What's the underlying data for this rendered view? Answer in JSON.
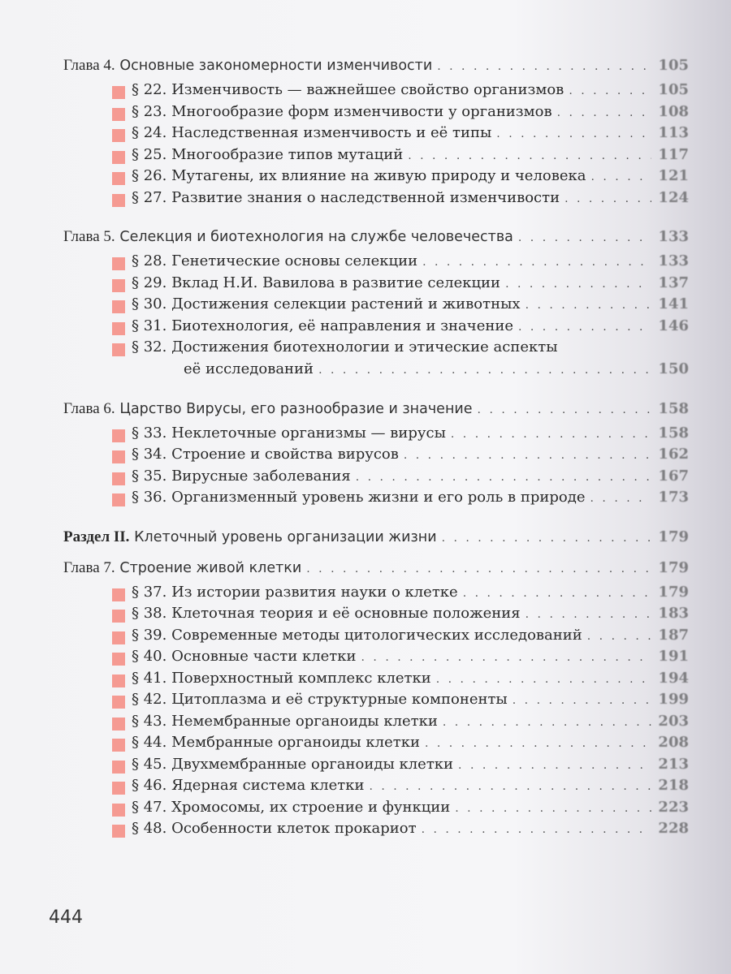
{
  "entries": [
    {
      "type": "head",
      "label": "Глава 4.",
      "title": "Основные закономерности изменчивости",
      "page": "105"
    },
    {
      "type": "item",
      "text": "§ 22. Изменчивость — важнейшее свойство организмов",
      "page": "105"
    },
    {
      "type": "item",
      "text": "§ 23. Многообразие форм изменчивости у организмов",
      "page": "108"
    },
    {
      "type": "item",
      "text": "§ 24. Наследственная изменчивость и её типы",
      "page": "113"
    },
    {
      "type": "item",
      "text": "§ 25. Многообразие типов мутаций",
      "page": "117"
    },
    {
      "type": "item",
      "text": "§ 26. Мутагены, их влияние на живую природу и человека",
      "page": "121"
    },
    {
      "type": "item",
      "text": "§ 27. Развитие знания о наследственной изменчивости",
      "page": "124"
    },
    {
      "type": "head",
      "label": "Глава 5.",
      "title": "Селекция и биотехнология на службе человечества",
      "page": "133"
    },
    {
      "type": "item",
      "text": "§ 28. Генетические основы селекции",
      "page": "133"
    },
    {
      "type": "item",
      "text": "§ 29. Вклад Н.И. Вавилова в развитие селекции",
      "page": "137"
    },
    {
      "type": "item",
      "text": "§ 30. Достижения селекции растений и животных",
      "page": "141"
    },
    {
      "type": "item",
      "text": "§ 31. Биотехнология, её направления и значение",
      "page": "146"
    },
    {
      "type": "item",
      "text": "§ 32. Достижения биотехнологии и этические аспекты",
      "page": ""
    },
    {
      "type": "cont",
      "text": "её исследований",
      "page": "150"
    },
    {
      "type": "head",
      "label": "Глава 6.",
      "title": "Царство Вирусы, его разнообразие и значение",
      "page": "158"
    },
    {
      "type": "item",
      "text": "§ 33. Неклеточные организмы — вирусы",
      "page": "158"
    },
    {
      "type": "item",
      "text": "§ 34. Строение и свойства вирусов",
      "page": "162"
    },
    {
      "type": "item",
      "text": "§ 35. Вирусные заболевания",
      "page": "167"
    },
    {
      "type": "item",
      "text": "§ 36. Организменный уровень жизни и его роль в природе",
      "page": "173"
    },
    {
      "type": "head",
      "label": "Раздел II.",
      "bold": true,
      "title": "Клеточный уровень организации жизни",
      "page": "179"
    },
    {
      "type": "head",
      "label": "Глава 7.",
      "title": "Строение живой клетки",
      "page": "179",
      "tight": true
    },
    {
      "type": "item",
      "text": "§ 37. Из истории развития науки о клетке",
      "page": "179"
    },
    {
      "type": "item",
      "text": "§ 38. Клеточная теория и её основные положения",
      "page": "183"
    },
    {
      "type": "item",
      "text": "§ 39. Современные методы цитологических исследований",
      "page": "187"
    },
    {
      "type": "item",
      "text": "§ 40. Основные части клетки",
      "page": "191"
    },
    {
      "type": "item",
      "text": "§ 41. Поверхностный комплекс клетки",
      "page": "194"
    },
    {
      "type": "item",
      "text": "§ 42. Цитоплазма и её структурные компоненты",
      "page": "199"
    },
    {
      "type": "item",
      "text": "§ 43. Немембранные органоиды клетки",
      "page": "203"
    },
    {
      "type": "item",
      "text": "§ 44. Мембранные органоиды клетки",
      "page": "208"
    },
    {
      "type": "item",
      "text": "§ 45. Двухмембранные органоиды клетки",
      "page": "213"
    },
    {
      "type": "item",
      "text": "§ 46. Ядерная система клетки",
      "page": "218"
    },
    {
      "type": "item",
      "text": "§ 47. Хромосомы, их строение и функции",
      "page": "223"
    },
    {
      "type": "item",
      "text": "§ 48. Особенности клеток прокариот",
      "page": "228"
    }
  ],
  "page_number": "444",
  "colors": {
    "marker": "#f59a92"
  }
}
